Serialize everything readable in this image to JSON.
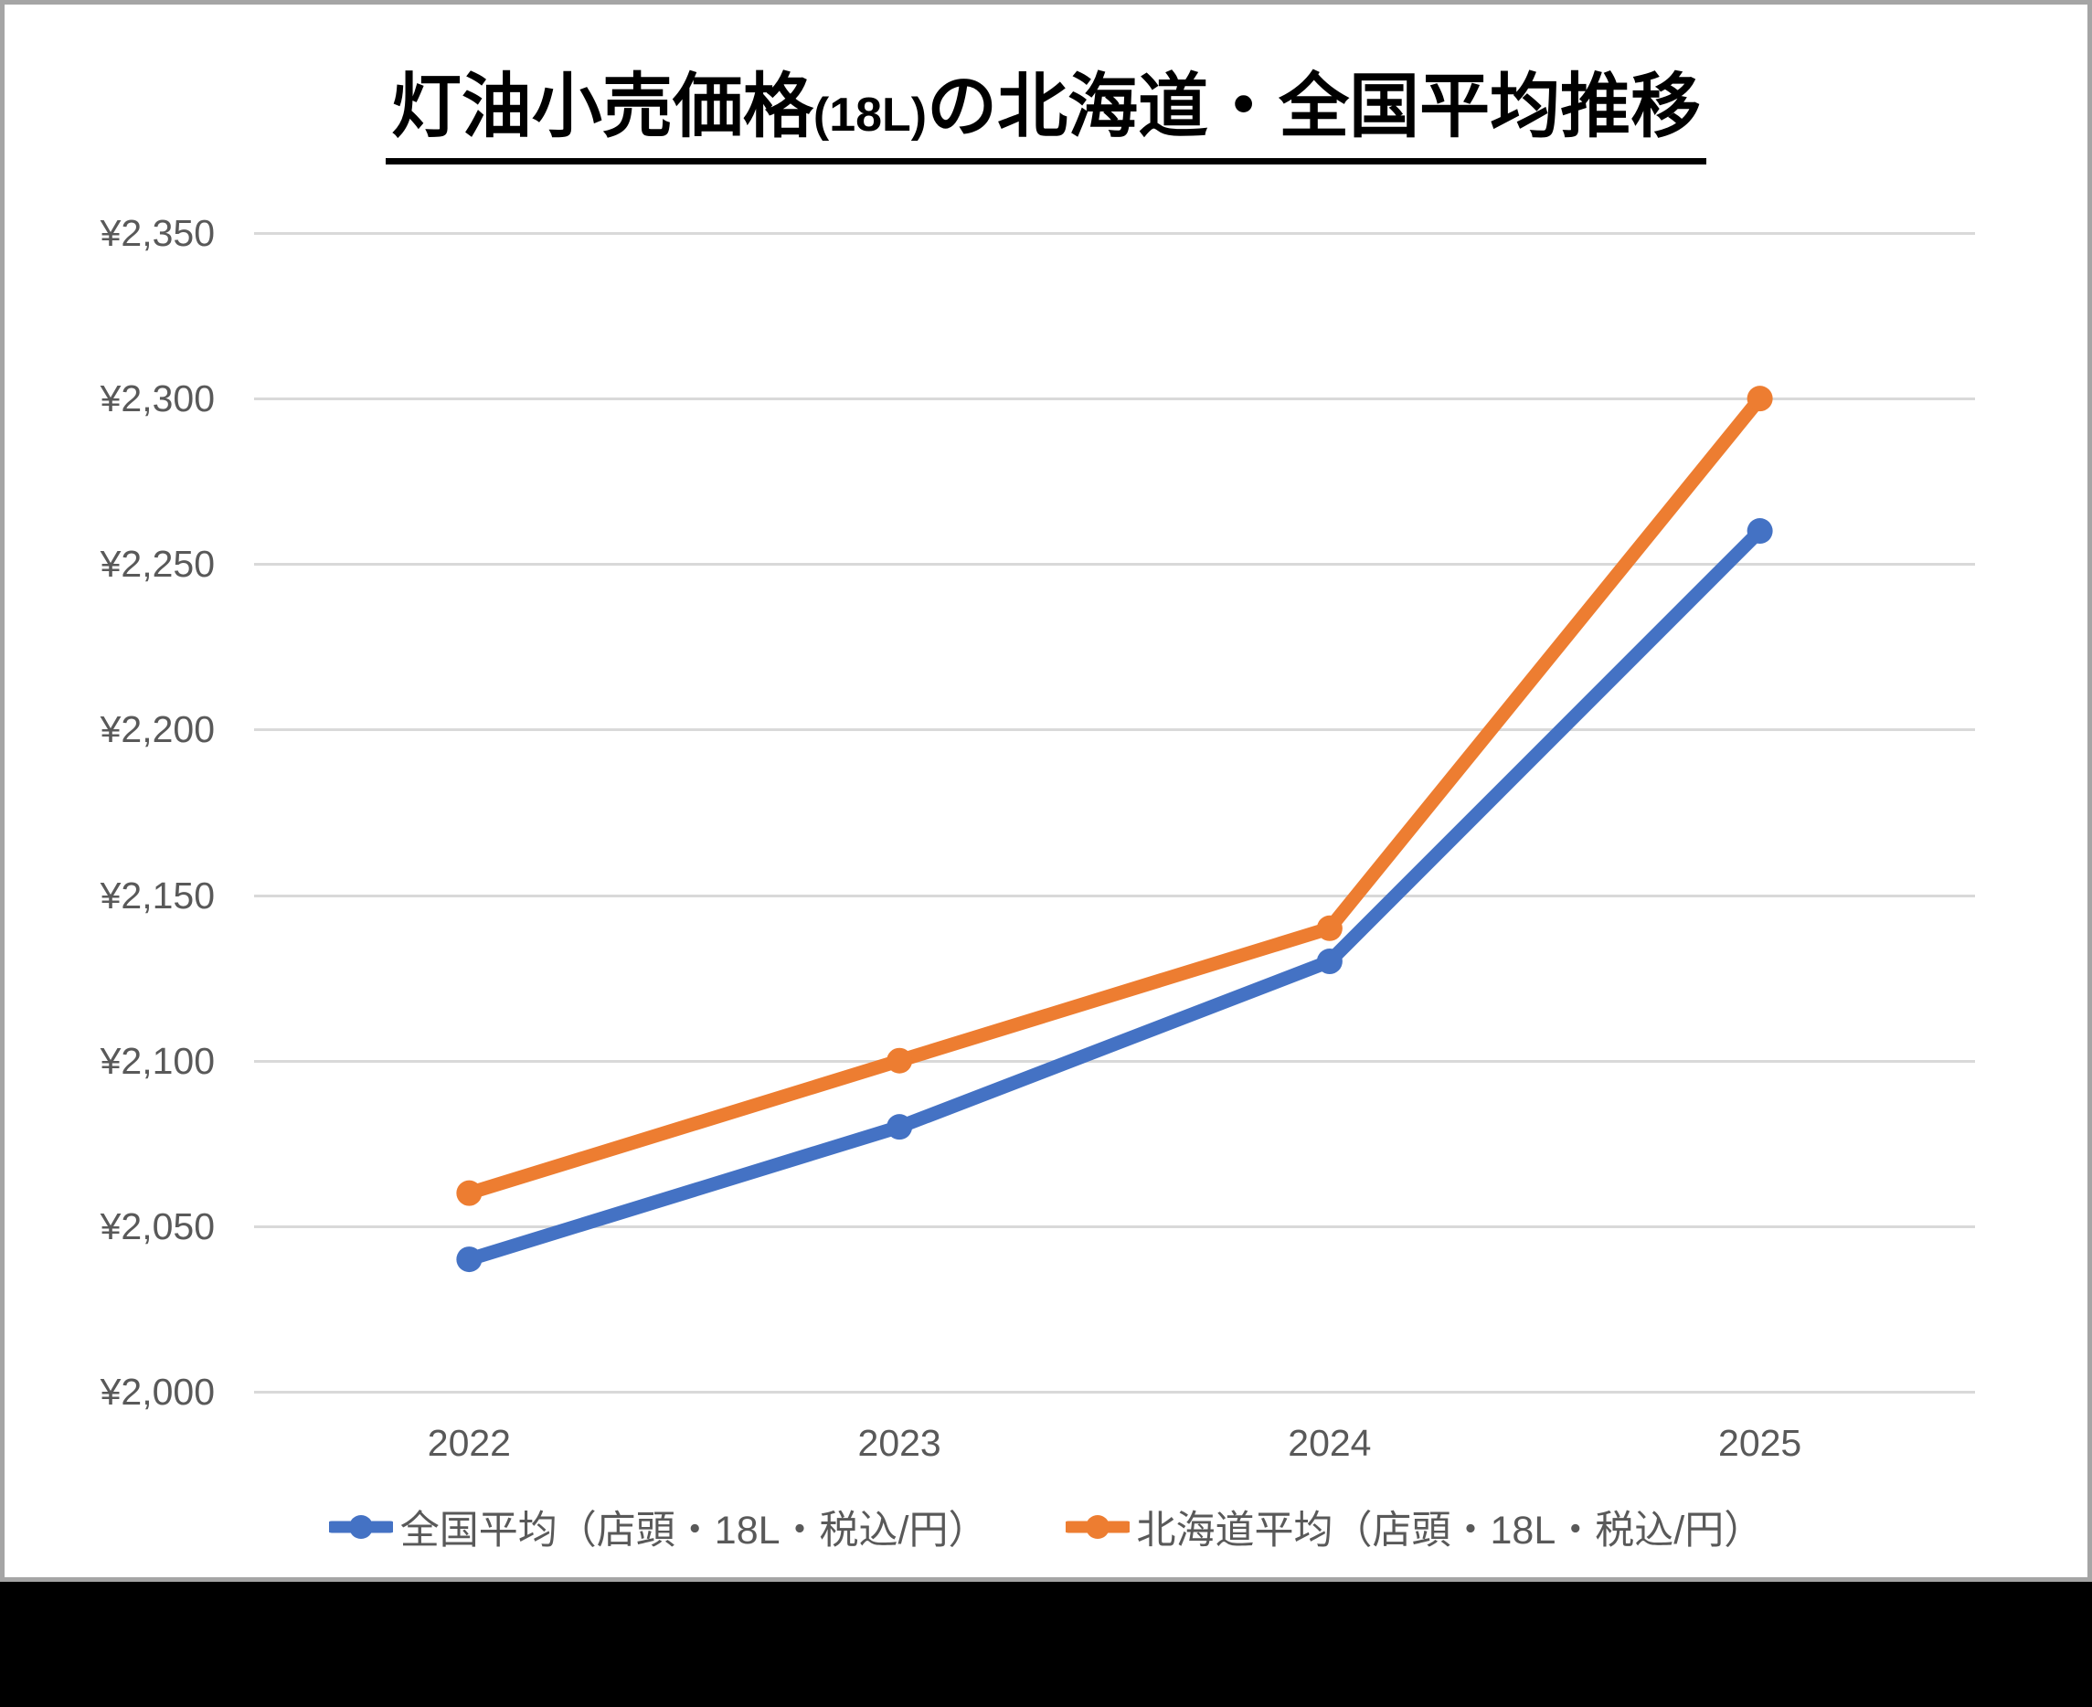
{
  "title": {
    "part1": "灯油小売価格",
    "part2": "(18L)",
    "part3": "の北海道・全国平均推移"
  },
  "chart_data": {
    "type": "line",
    "title": "灯油小売価格(18L)の北海道・全国平均推移",
    "x": [
      2022,
      2023,
      2024,
      2025
    ],
    "xtick_labels": [
      "2022",
      "2023",
      "2024",
      "2025"
    ],
    "ytick_labels": [
      "¥2,350",
      "¥2,300",
      "¥2,250",
      "¥2,200",
      "¥2,150",
      "¥2,100",
      "¥2,050",
      "¥2,000"
    ],
    "ylim": [
      2000,
      2350
    ],
    "ytick_step": 50,
    "grid": true,
    "legend_position": "bottom",
    "series": [
      {
        "name": "全国平均（店頭・18L・税込/円）",
        "values": [
          2040,
          2080,
          2130,
          2260
        ],
        "color": "#4472C4"
      },
      {
        "name": "北海道平均（店頭・18L・税込/円）",
        "values": [
          2060,
          2100,
          2140,
          2300
        ],
        "color": "#ED7D31"
      }
    ]
  },
  "colors": {
    "axis_text": "#595959",
    "gridline": "#D9D9D9",
    "card_border": "#A5A5A5",
    "background": "#000000",
    "title_text": "#000000"
  }
}
